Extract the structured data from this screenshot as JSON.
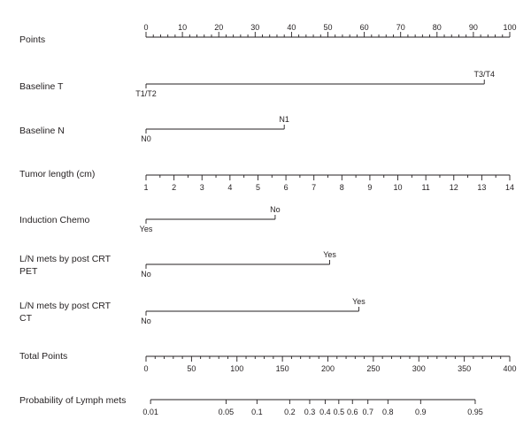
{
  "chart_data": {
    "type": "nomogram",
    "rows": [
      {
        "label": "Points",
        "kind": "axis",
        "min": 0,
        "max": 100,
        "ticks": [
          "0",
          "10",
          "20",
          "30",
          "40",
          "50",
          "60",
          "70",
          "80",
          "90",
          "100"
        ],
        "minor_step": 2
      },
      {
        "label": "Baseline T",
        "kind": "categorical",
        "points_max": 93,
        "levels": [
          {
            "label": "T1/T2",
            "points": 0
          },
          {
            "label": "T3/T4",
            "points": 93
          }
        ]
      },
      {
        "label": "Baseline N",
        "kind": "categorical",
        "points_max": 38,
        "levels": [
          {
            "label": "N0",
            "points": 0
          },
          {
            "label": "N1",
            "points": 38
          }
        ]
      },
      {
        "label": "Tumor length (cm)",
        "kind": "continuous",
        "min": 1,
        "max": 14,
        "ticks": [
          "1",
          "2",
          "3",
          "4",
          "5",
          "6",
          "7",
          "8",
          "9",
          "10",
          "11",
          "12",
          "13",
          "14"
        ],
        "points_at_min": 0,
        "points_at_max": 100
      },
      {
        "label": "Induction Chemo",
        "kind": "categorical",
        "points_max": 35.5,
        "levels": [
          {
            "label": "Yes",
            "points": 0
          },
          {
            "label": "No",
            "points": 35.5
          }
        ]
      },
      {
        "label_lines": [
          "L/N mets by post CRT",
          "PET"
        ],
        "kind": "categorical",
        "points_max": 50.5,
        "levels": [
          {
            "label": "No",
            "points": 0
          },
          {
            "label": "Yes",
            "points": 50.5
          }
        ]
      },
      {
        "label_lines": [
          "L/N mets by post CRT",
          "CT"
        ],
        "kind": "categorical",
        "points_max": 58.5,
        "levels": [
          {
            "label": "No",
            "points": 0
          },
          {
            "label": "Yes",
            "points": 58.5
          }
        ]
      },
      {
        "label": "Total Points",
        "kind": "axis",
        "min": 0,
        "max": 400,
        "ticks": [
          "0",
          "50",
          "100",
          "150",
          "200",
          "250",
          "300",
          "350",
          "400"
        ],
        "minor_step": 10
      },
      {
        "label": "Probability of Lymph mets",
        "kind": "probability",
        "ticks": [
          {
            "label": "0.01",
            "total_points": 5
          },
          {
            "label": "0.05",
            "total_points": 88
          },
          {
            "label": "0.1",
            "total_points": 122
          },
          {
            "label": "0.2",
            "total_points": 158
          },
          {
            "label": "0.3",
            "total_points": 180
          },
          {
            "label": "0.4",
            "total_points": 197
          },
          {
            "label": "0.5",
            "total_points": 212
          },
          {
            "label": "0.6",
            "total_points": 227
          },
          {
            "label": "0.7",
            "total_points": 244
          },
          {
            "label": "0.8",
            "total_points": 266
          },
          {
            "label": "0.9",
            "total_points": 302
          },
          {
            "label": "0.95",
            "total_points": 362
          }
        ]
      }
    ]
  }
}
